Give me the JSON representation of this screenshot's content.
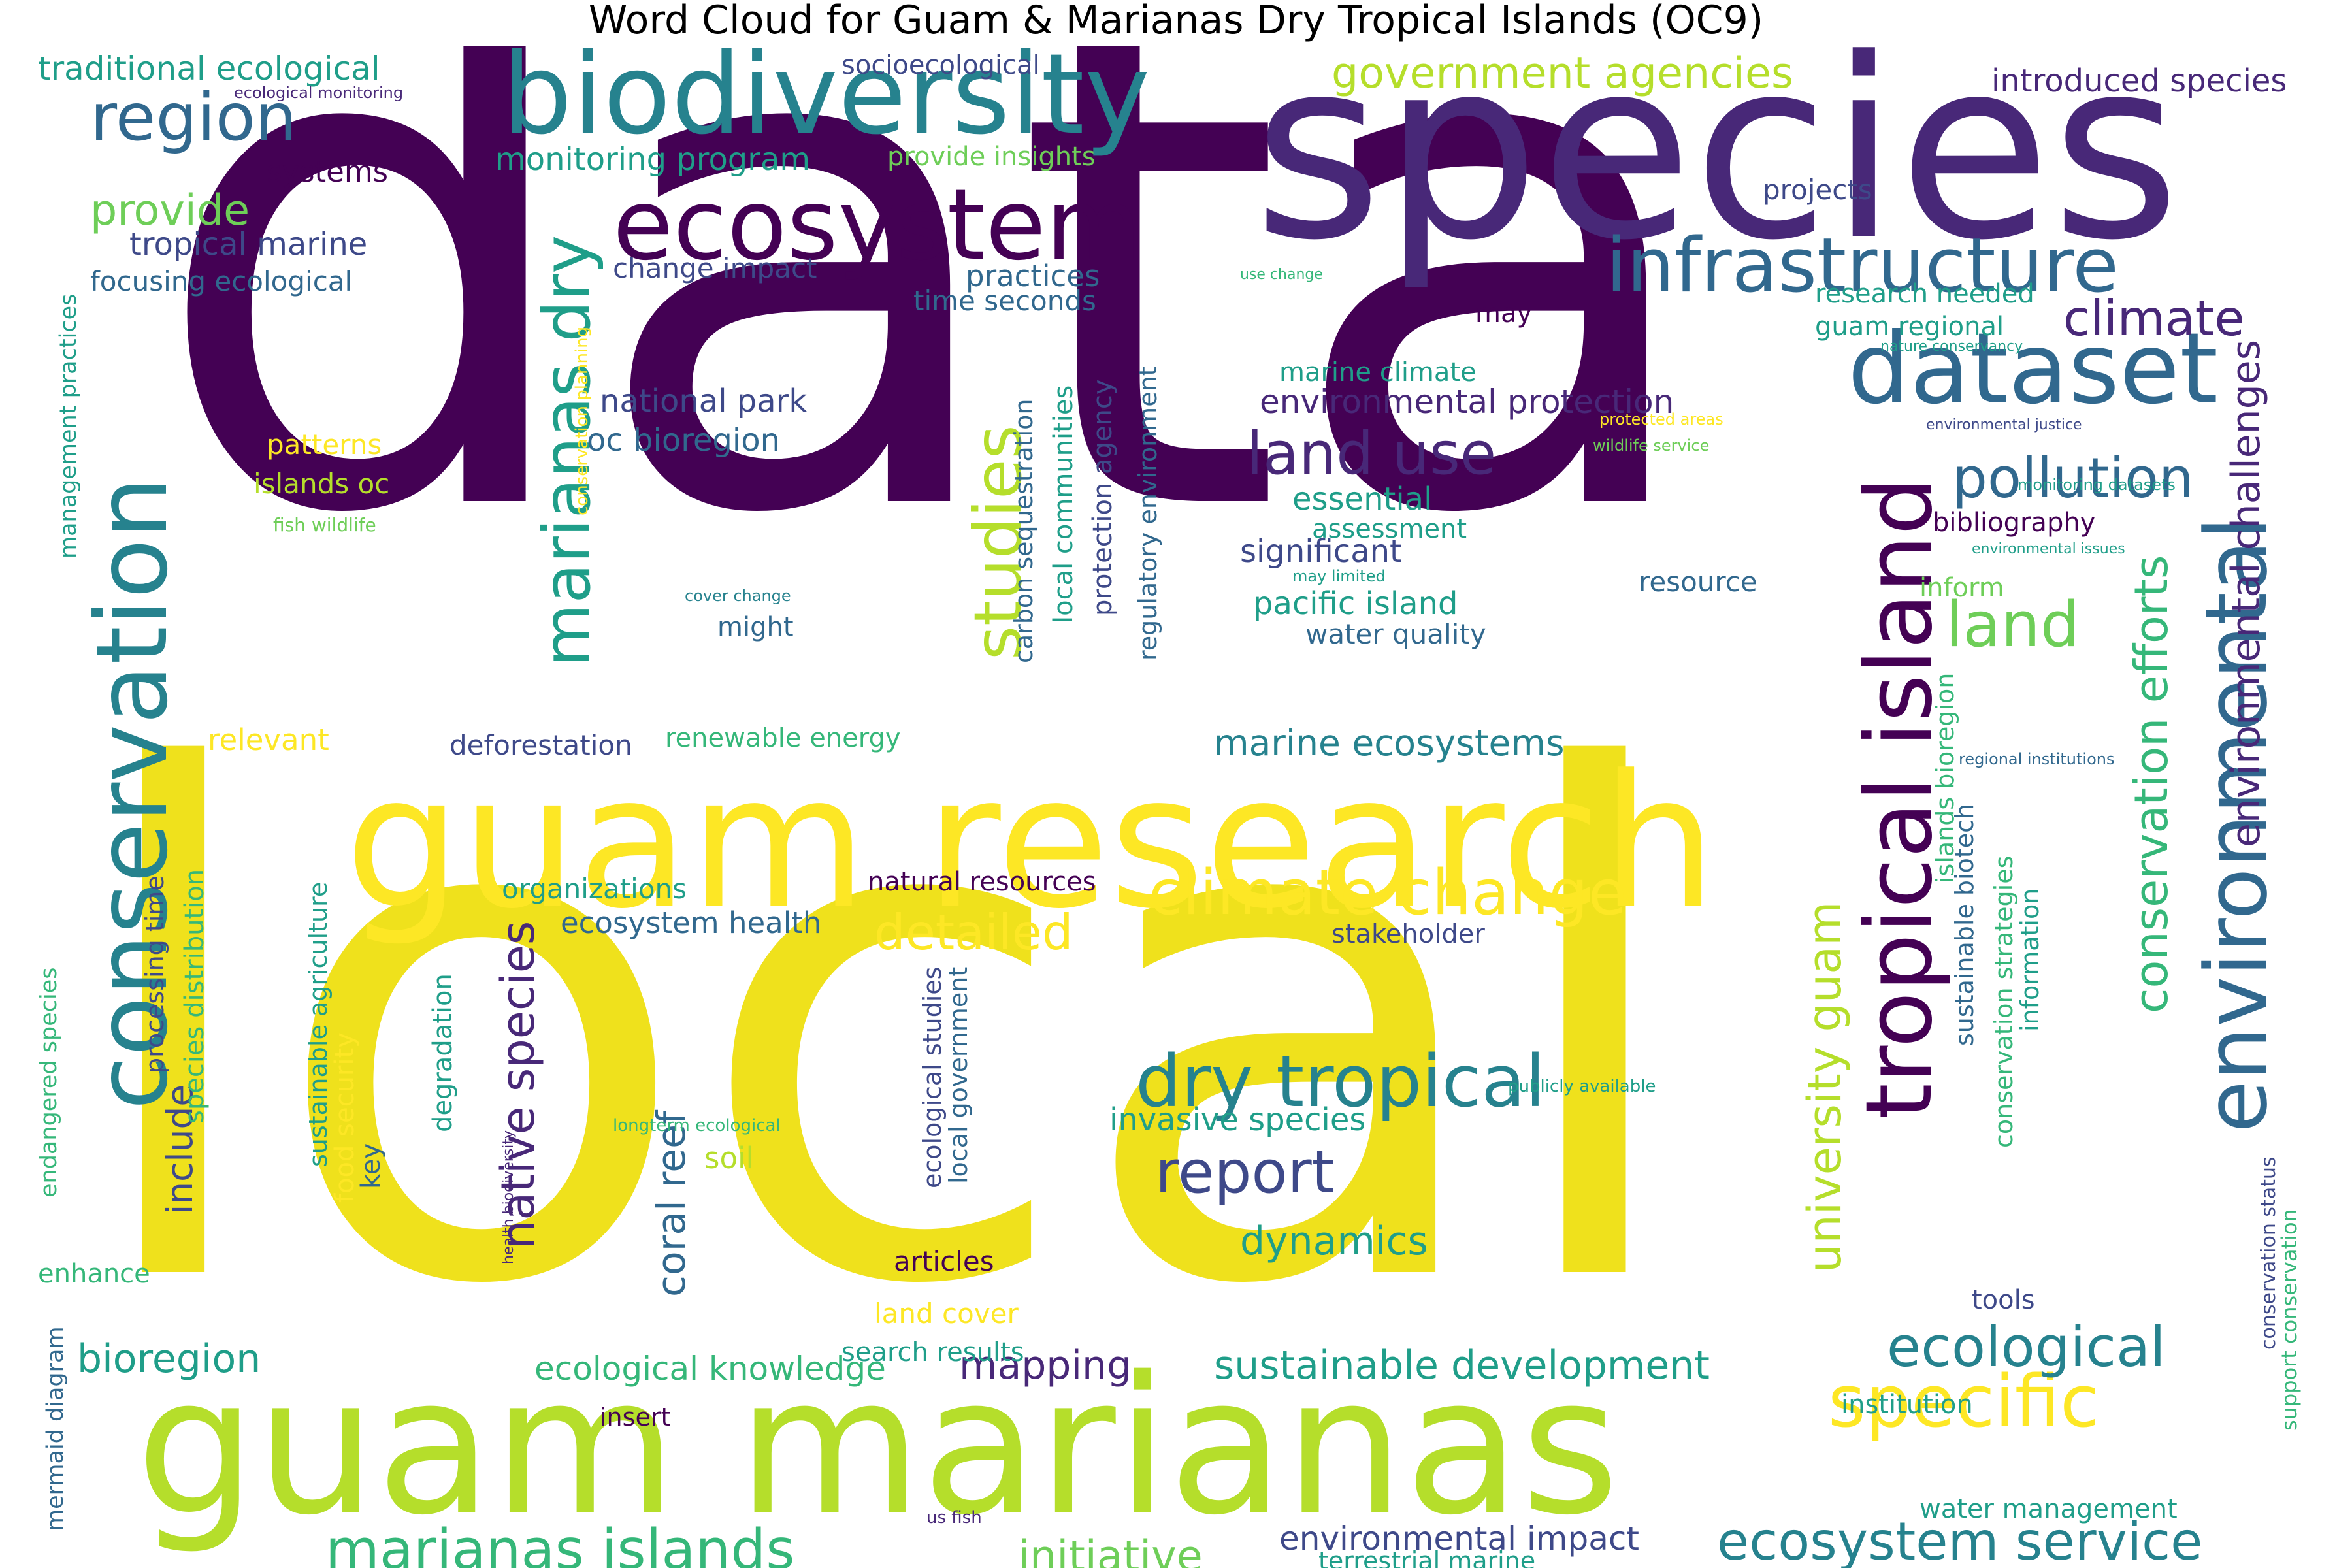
{
  "title": "Word Cloud for Guam & Marianas Dry Tropical Islands (OC9)",
  "palette": {
    "darkpurple": "#440154",
    "purple": "#482878",
    "indigo": "#3e4989",
    "blue": "#31688e",
    "teal": "#26828e",
    "green": "#1f9e89",
    "seagreen": "#35b779",
    "lime": "#6ece58",
    "yellowgreen": "#b5de2b",
    "yellow": "#fde725",
    "gold": "#efe11c"
  },
  "words": [
    {
      "text": "data",
      "color": "darkpurple",
      "rot": 0
    },
    {
      "text": "local",
      "color": "gold",
      "rot": 0
    },
    {
      "text": "species",
      "color": "purple",
      "rot": 0
    },
    {
      "text": "guam marianas",
      "color": "yellowgreen",
      "rot": 0
    },
    {
      "text": "guam research",
      "color": "yellow",
      "rot": 0
    },
    {
      "text": "biodiversity",
      "color": "teal",
      "rot": 0
    },
    {
      "text": "ecosystem",
      "color": "darkpurple",
      "rot": 0
    },
    {
      "text": "conservation",
      "color": "teal",
      "rot": 90
    },
    {
      "text": "dataset",
      "color": "blue",
      "rot": 0
    },
    {
      "text": "tropical island",
      "color": "darkpurple",
      "rot": 90
    },
    {
      "text": "environmental",
      "color": "blue",
      "rot": 90
    },
    {
      "text": "infrastructure",
      "color": "blue",
      "rot": 0
    },
    {
      "text": "region",
      "color": "blue",
      "rot": 0
    },
    {
      "text": "marianas dry",
      "color": "green",
      "rot": 90
    },
    {
      "text": "studies",
      "color": "yellowgreen",
      "rot": 90
    },
    {
      "text": "dry tropical",
      "color": "teal",
      "rot": 0
    },
    {
      "text": "climate change",
      "color": "yellow",
      "rot": 0
    },
    {
      "text": "specific",
      "color": "yellow",
      "rot": 0
    },
    {
      "text": "marianas islands",
      "color": "seagreen",
      "rot": 0
    },
    {
      "text": "ecological",
      "color": "teal",
      "rot": 0
    },
    {
      "text": "ecosystem service",
      "color": "teal",
      "rot": 0
    },
    {
      "text": "land use",
      "color": "purple",
      "rot": 0
    },
    {
      "text": "report",
      "color": "indigo",
      "rot": 0
    },
    {
      "text": "land",
      "color": "lime",
      "rot": 0
    },
    {
      "text": "pollution",
      "color": "blue",
      "rot": 0
    },
    {
      "text": "climate",
      "color": "purple",
      "rot": 0
    },
    {
      "text": "government agencies",
      "color": "yellowgreen",
      "rot": 0
    },
    {
      "text": "native species",
      "color": "purple",
      "rot": 90
    },
    {
      "text": "university guam",
      "color": "yellowgreen",
      "rot": 90
    },
    {
      "text": "conservation efforts",
      "color": "seagreen",
      "rot": 90
    },
    {
      "text": "environmental challenges",
      "color": "purple",
      "rot": 90
    },
    {
      "text": "detailed",
      "color": "yellow",
      "rot": 0
    },
    {
      "text": "provide",
      "color": "lime",
      "rot": 0
    },
    {
      "text": "initiative",
      "color": "lime",
      "rot": 0
    },
    {
      "text": "bioregion",
      "color": "green",
      "rot": 0
    },
    {
      "text": "sustainable development",
      "color": "green",
      "rot": 0
    },
    {
      "text": "marine ecosystems",
      "color": "teal",
      "rot": 0
    },
    {
      "text": "mapping",
      "color": "purple",
      "rot": 0
    },
    {
      "text": "dynamics",
      "color": "green",
      "rot": 0
    },
    {
      "text": "environmental protection",
      "color": "purple",
      "rot": 0
    },
    {
      "text": "environmental impact",
      "color": "indigo",
      "rot": 0
    },
    {
      "text": "traditional ecological",
      "color": "green",
      "rot": 0
    },
    {
      "text": "introduced species",
      "color": "purple",
      "rot": 0
    },
    {
      "text": "include",
      "color": "indigo",
      "rot": 90
    },
    {
      "text": "coral reef",
      "color": "blue",
      "rot": 90
    },
    {
      "text": "ecological knowledge",
      "color": "seagreen",
      "rot": 0
    },
    {
      "text": "monitoring program",
      "color": "green",
      "rot": 0
    },
    {
      "text": "tropical marine",
      "color": "indigo",
      "rot": 0
    },
    {
      "text": "national park",
      "color": "indigo",
      "rot": 0
    },
    {
      "text": "oc bioregion",
      "color": "blue",
      "rot": 0
    },
    {
      "text": "essential",
      "color": "green",
      "rot": 0
    },
    {
      "text": "significant",
      "color": "indigo",
      "rot": 0
    },
    {
      "text": "pacific island",
      "color": "green",
      "rot": 0
    },
    {
      "text": "invasive species",
      "color": "green",
      "rot": 0
    },
    {
      "text": "ecosystem health",
      "color": "blue",
      "rot": 0
    },
    {
      "text": "climate",
      "color": "purple",
      "rot": 0
    },
    {
      "text": "bibliography",
      "color": "darkpurple",
      "rot": 0
    },
    {
      "text": "practices",
      "color": "blue",
      "rot": 0
    },
    {
      "text": "change impact",
      "color": "indigo",
      "rot": 0
    },
    {
      "text": "systems",
      "color": "darkpurple",
      "rot": 0
    },
    {
      "text": "focusing ecological",
      "color": "blue",
      "rot": 0
    },
    {
      "text": "projects",
      "color": "indigo",
      "rot": 0
    },
    {
      "text": "may",
      "color": "darkpurple",
      "rot": 0
    },
    {
      "text": "research needed",
      "color": "green",
      "rot": 0
    },
    {
      "text": "guam regional",
      "color": "green",
      "rot": 0
    },
    {
      "text": "socioecological",
      "color": "indigo",
      "rot": 0
    },
    {
      "text": "provide insights",
      "color": "lime",
      "rot": 0
    },
    {
      "text": "time seconds",
      "color": "blue",
      "rot": 0
    },
    {
      "text": "marine climate",
      "color": "green",
      "rot": 0
    },
    {
      "text": "assessment",
      "color": "green",
      "rot": 0
    },
    {
      "text": "water quality",
      "color": "blue",
      "rot": 0
    },
    {
      "text": "resource",
      "color": "blue",
      "rot": 0
    },
    {
      "text": "inform",
      "color": "lime",
      "rot": 0
    },
    {
      "text": "relevant",
      "color": "yellow",
      "rot": 0
    },
    {
      "text": "deforestation",
      "color": "indigo",
      "rot": 0
    },
    {
      "text": "renewable energy",
      "color": "seagreen",
      "rot": 0
    },
    {
      "text": "organizations",
      "color": "green",
      "rot": 0
    },
    {
      "text": "natural resources",
      "color": "darkpurple",
      "rot": 0
    },
    {
      "text": "stakeholder",
      "color": "indigo",
      "rot": 0
    },
    {
      "text": "patterns",
      "color": "yellow",
      "rot": 0
    },
    {
      "text": "islands oc",
      "color": "yellowgreen",
      "rot": 0
    },
    {
      "text": "fish wildlife",
      "color": "lime",
      "rot": 0
    },
    {
      "text": "soil",
      "color": "yellowgreen",
      "rot": 0
    },
    {
      "text": "might",
      "color": "blue",
      "rot": 0
    },
    {
      "text": "articles",
      "color": "darkpurple",
      "rot": 0
    },
    {
      "text": "land cover",
      "color": "yellow",
      "rot": 0
    },
    {
      "text": "search results",
      "color": "green",
      "rot": 0
    },
    {
      "text": "insert",
      "color": "darkpurple",
      "rot": 0
    },
    {
      "text": "institution",
      "color": "green",
      "rot": 0
    },
    {
      "text": "water management",
      "color": "green",
      "rot": 0
    },
    {
      "text": "tools",
      "color": "indigo",
      "rot": 0
    },
    {
      "text": "enhance",
      "color": "seagreen",
      "rot": 0
    },
    {
      "text": "terrestrial marine",
      "color": "green",
      "rot": 0
    },
    {
      "text": "us fish",
      "color": "purple",
      "rot": 0
    },
    {
      "text": "key",
      "color": "blue",
      "rot": 90
    },
    {
      "text": "degradation",
      "color": "green",
      "rot": 90
    },
    {
      "text": "food security",
      "color": "yellow",
      "rot": 90
    },
    {
      "text": "sustainable agriculture",
      "color": "green",
      "rot": 90
    },
    {
      "text": "species distribution",
      "color": "seagreen",
      "rot": 90
    },
    {
      "text": "processing time",
      "color": "indigo",
      "rot": 90
    },
    {
      "text": "endangered species",
      "color": "seagreen",
      "rot": 90
    },
    {
      "text": "management practices",
      "color": "green",
      "rot": 90
    },
    {
      "text": "mermaid diagram",
      "color": "blue",
      "rot": 90
    },
    {
      "text": "ecological studies",
      "color": "indigo",
      "rot": 90
    },
    {
      "text": "local government",
      "color": "blue",
      "rot": 90
    },
    {
      "text": "carbon sequestration",
      "color": "blue",
      "rot": 90
    },
    {
      "text": "local communities",
      "color": "green",
      "rot": 90
    },
    {
      "text": "protection agency",
      "color": "indigo",
      "rot": 90
    },
    {
      "text": "regulatory environment",
      "color": "blue",
      "rot": 90
    },
    {
      "text": "conservation planning",
      "color": "yellow",
      "rot": 90
    },
    {
      "text": "islands bioregion",
      "color": "seagreen",
      "rot": 90
    },
    {
      "text": "sustainable biotech",
      "color": "blue",
      "rot": 90
    },
    {
      "text": "conservation strategies",
      "color": "seagreen",
      "rot": 90
    },
    {
      "text": "information",
      "color": "green",
      "rot": 90
    },
    {
      "text": "conservation status",
      "color": "indigo",
      "rot": 90
    },
    {
      "text": "support conservation",
      "color": "seagreen",
      "rot": 90
    },
    {
      "text": "health biodiversity",
      "color": "purple",
      "rot": 90
    },
    {
      "text": "ecological monitoring",
      "color": "purple",
      "rot": 0
    },
    {
      "text": "use change",
      "color": "seagreen",
      "rot": 0
    },
    {
      "text": "nature conservancy",
      "color": "green",
      "rot": 0
    },
    {
      "text": "protected areas",
      "color": "yellow",
      "rot": 0
    },
    {
      "text": "wildlife service",
      "color": "lime",
      "rot": 0
    },
    {
      "text": "environmental justice",
      "color": "indigo",
      "rot": 0
    },
    {
      "text": "monitoring datasets",
      "color": "green",
      "rot": 0
    },
    {
      "text": "environmental issues",
      "color": "green",
      "rot": 0
    },
    {
      "text": "regional institutions",
      "color": "blue",
      "rot": 0
    },
    {
      "text": "publicly available",
      "color": "green",
      "rot": 0
    },
    {
      "text": "longterm ecological",
      "color": "seagreen",
      "rot": 0
    },
    {
      "text": "cover change",
      "color": "teal",
      "rot": 0
    },
    {
      "text": "may limited",
      "color": "green",
      "rot": 0
    }
  ]
}
